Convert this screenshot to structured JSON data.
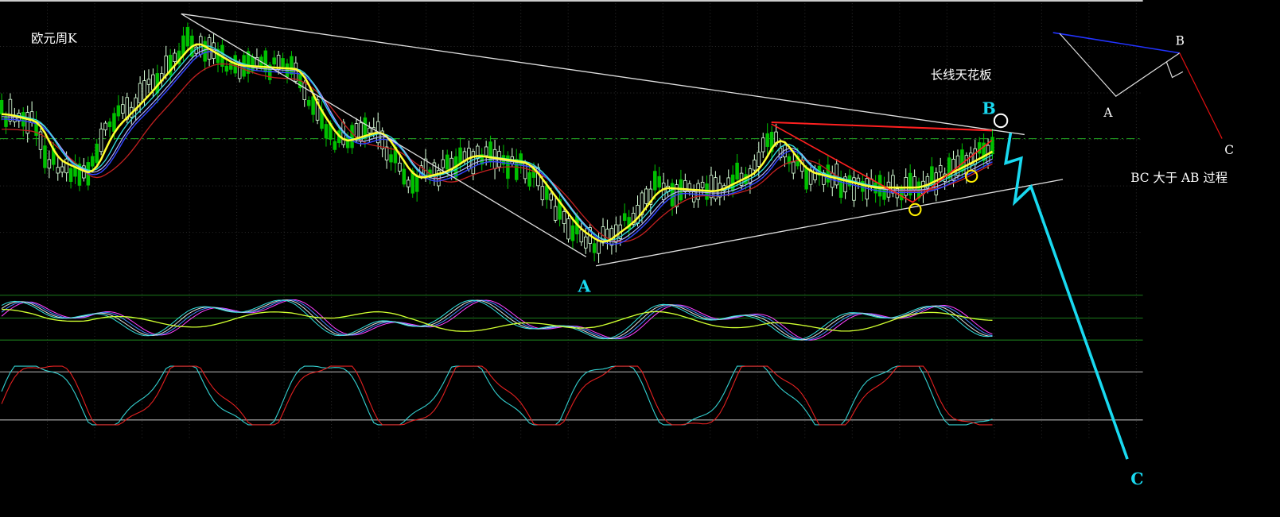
{
  "title": "欧元周K",
  "annotations": {
    "ceiling": "长线天花板",
    "bc_note": "BC 大于 AB 过程"
  },
  "wave_labels": {
    "a": "A",
    "b": "B",
    "c": "C"
  },
  "diagram_labels": {
    "a": "A",
    "b": "B",
    "c": "C"
  }
}
